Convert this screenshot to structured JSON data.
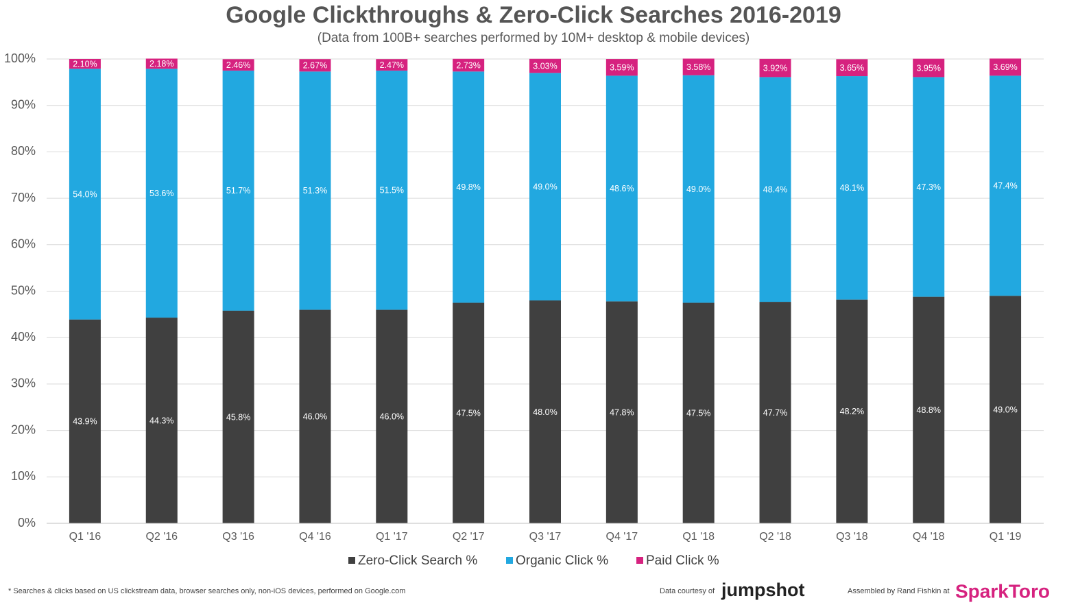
{
  "chart_data": {
    "type": "stacked_bar",
    "title": "Google Clickthroughs & Zero-Click Searches 2016-2019",
    "subtitle": "(Data from 100B+ searches performed by 10M+ desktop & mobile devices)",
    "categories": [
      "Q1 '16",
      "Q2 '16",
      "Q3 '16",
      "Q4 '16",
      "Q1 '17",
      "Q2 '17",
      "Q3 '17",
      "Q4 '17",
      "Q1 '18",
      "Q2 '18",
      "Q3 '18",
      "Q4 '18",
      "Q1 '19"
    ],
    "series": [
      {
        "name": "Zero-Click Search %",
        "color": "#404040",
        "values": [
          43.9,
          44.3,
          45.8,
          46.0,
          46.0,
          47.5,
          48.0,
          47.8,
          47.5,
          47.7,
          48.2,
          48.8,
          49.0
        ],
        "value_labels": [
          "43.9%",
          "44.3%",
          "45.8%",
          "46.0%",
          "46.0%",
          "47.5%",
          "48.0%",
          "47.8%",
          "47.5%",
          "47.7%",
          "48.2%",
          "48.8%",
          "49.0%"
        ]
      },
      {
        "name": "Organic Click %",
        "color": "#22a8e0",
        "values": [
          54.0,
          53.6,
          51.7,
          51.3,
          51.5,
          49.8,
          49.0,
          48.6,
          49.0,
          48.4,
          48.1,
          47.3,
          47.4
        ],
        "value_labels": [
          "54.0%",
          "53.6%",
          "51.7%",
          "51.3%",
          "51.5%",
          "49.8%",
          "49.0%",
          "48.6%",
          "49.0%",
          "48.4%",
          "48.1%",
          "47.3%",
          "47.4%"
        ]
      },
      {
        "name": "Paid Click %",
        "color": "#d6227f",
        "values": [
          2.1,
          2.18,
          2.46,
          2.67,
          2.47,
          2.73,
          3.03,
          3.59,
          3.58,
          3.92,
          3.65,
          3.95,
          3.69
        ],
        "value_labels": [
          "2.10%",
          "2.18%",
          "2.46%",
          "2.67%",
          "2.47%",
          "2.73%",
          "3.03%",
          "3.59%",
          "3.58%",
          "3.92%",
          "3.65%",
          "3.95%",
          "3.69%"
        ]
      }
    ],
    "ylim": [
      0,
      100
    ],
    "yticks": [
      {
        "value": 0,
        "label": "0%"
      },
      {
        "value": 10,
        "label": "10%"
      },
      {
        "value": 20,
        "label": "20%"
      },
      {
        "value": 30,
        "label": "30%"
      },
      {
        "value": 40,
        "label": "40%"
      },
      {
        "value": 50,
        "label": "50%"
      },
      {
        "value": 60,
        "label": "60%"
      },
      {
        "value": 70,
        "label": "70%"
      },
      {
        "value": 80,
        "label": "80%"
      },
      {
        "value": 90,
        "label": "90%"
      },
      {
        "value": 100,
        "label": "100%"
      }
    ],
    "grid": true,
    "legend": "bottom"
  },
  "footer": {
    "note": "* Searches & clicks based on US clickstream data, browser searches only, non-iOS devices, performed on Google.com",
    "credit": "Data courtesy of",
    "credit_brand": "jumpshot",
    "assembled": "Assembled by Rand Fishkin at",
    "assembled_brand": "SparkToro"
  }
}
